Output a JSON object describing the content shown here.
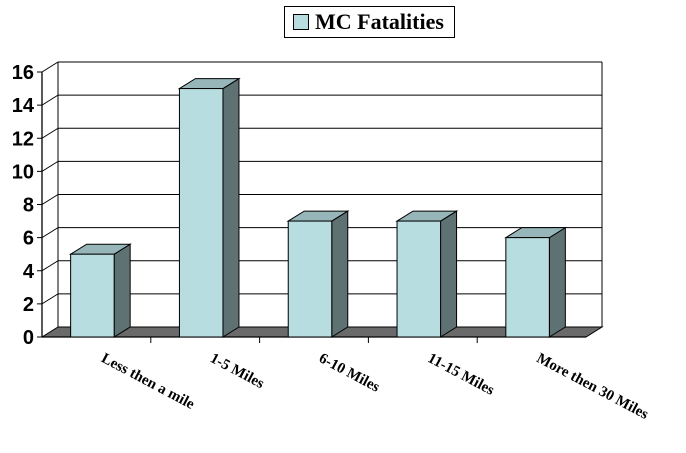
{
  "chart_data": {
    "type": "bar",
    "categories": [
      "Less then a mile",
      "1-5 Miles",
      "6-10 Miles",
      "11-15 Miles",
      "More then 30 Miles"
    ],
    "series": [
      {
        "name": "MC Fatalities",
        "values": [
          5,
          15,
          7,
          7,
          6
        ]
      }
    ],
    "yticks": [
      "0",
      "2",
      "4",
      "6",
      "8",
      "10",
      "12",
      "14",
      "16"
    ],
    "ylim": [
      0,
      16
    ],
    "grid": true,
    "legend": "top-center",
    "style": "3d-column",
    "colors": {
      "bar_front": "#b8dde0",
      "bar_side": "#5e7173",
      "bar_top": "#97b6b9",
      "floor": "#6a6a6a"
    }
  }
}
